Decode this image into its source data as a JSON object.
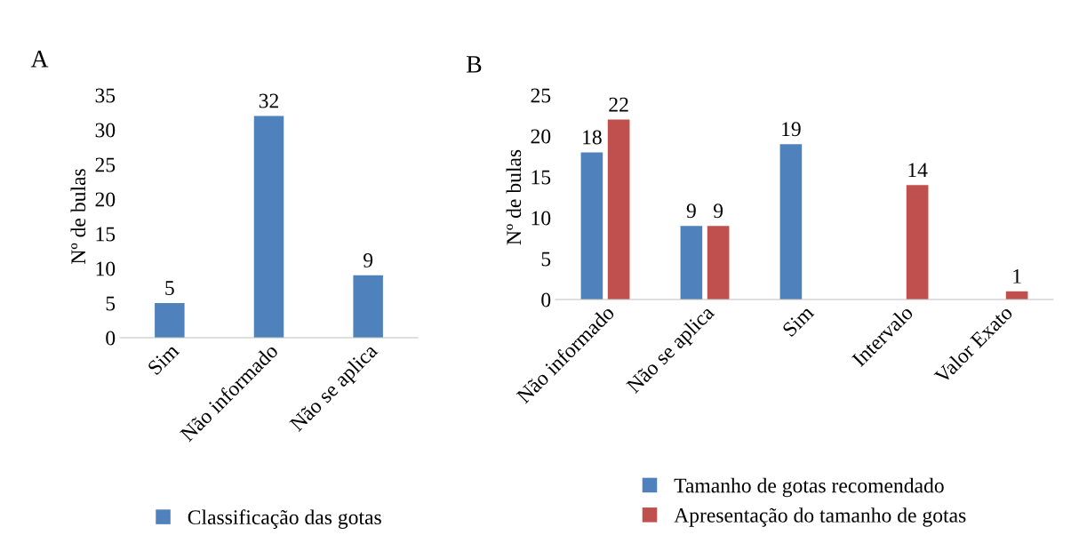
{
  "chart_data": [
    {
      "type": "bar",
      "title": "A",
      "ylabel": "Nº de bulas",
      "categories": [
        "Sim",
        "Não informado",
        "Não se aplica"
      ],
      "series": [
        {
          "name": "Classificação das gotas",
          "color": "#4f81bd",
          "values": [
            5,
            32,
            9
          ]
        }
      ],
      "ylim": [
        0,
        35
      ],
      "yticks": [
        0,
        5,
        10,
        15,
        20,
        25,
        30,
        35
      ],
      "data_labels": true,
      "grid": false,
      "legend": "bottom"
    },
    {
      "type": "bar",
      "title": "B",
      "ylabel": "Nº de bulas",
      "categories": [
        "Não informado",
        "Não se aplica",
        "Sim",
        "Intervalo",
        "Valor Exato"
      ],
      "series": [
        {
          "name": "Tamanho de gotas recomendado",
          "color": "#4f81bd",
          "values": [
            18,
            9,
            19,
            null,
            null
          ]
        },
        {
          "name": "Apresentação do tamanho de gotas",
          "color": "#c0504d",
          "values": [
            22,
            9,
            null,
            14,
            1
          ]
        }
      ],
      "ylim": [
        0,
        25
      ],
      "yticks": [
        0,
        5,
        10,
        15,
        20,
        25
      ],
      "data_labels": true,
      "grid": false,
      "legend": "bottom"
    }
  ]
}
